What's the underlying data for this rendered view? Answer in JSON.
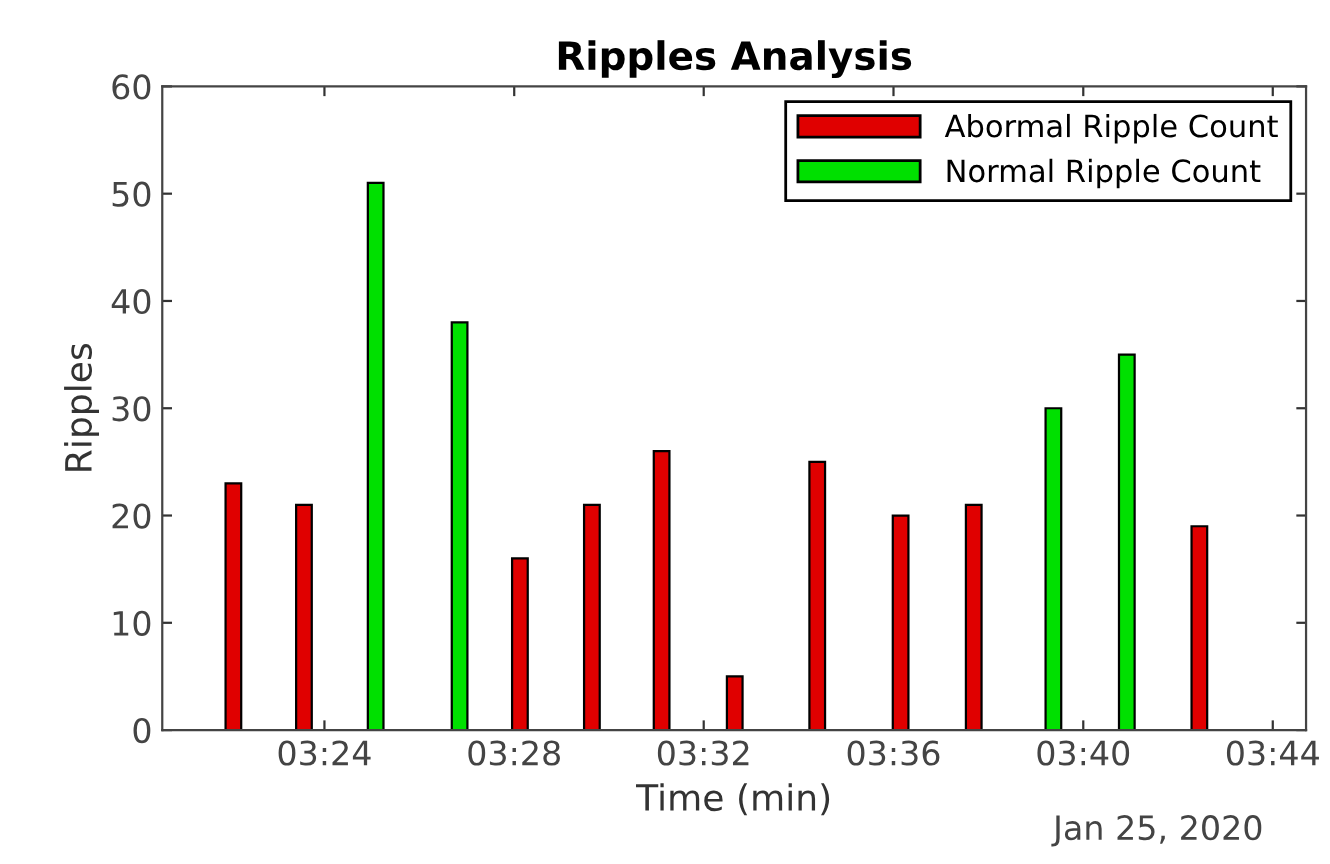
{
  "chart_data": {
    "type": "bar",
    "title": "Ripples Analysis",
    "xlabel": "Time (min)",
    "ylabel": "Ripples",
    "series": [
      {
        "name": "Abormal Ripple Count",
        "color": "#e00000",
        "x": [
          3.368,
          3.3928,
          3.4687,
          3.494,
          3.5185,
          3.5442,
          3.5732,
          3.6025,
          3.6282,
          3.7075
        ],
        "values": [
          23,
          21,
          16,
          21,
          26,
          5,
          25,
          20,
          21,
          19
        ]
      },
      {
        "name": "Normal Ripple Count",
        "color": "#00e000",
        "x": [
          3.418,
          3.4475,
          3.6562,
          3.682
        ],
        "values": [
          51,
          38,
          30,
          35
        ]
      }
    ],
    "xlim": [
      3.343,
      3.745
    ],
    "xticks": [
      {
        "value": 3.4,
        "label": "03:24"
      },
      {
        "value": 3.4667,
        "label": "03:28"
      },
      {
        "value": 3.5333,
        "label": "03:32"
      },
      {
        "value": 3.6,
        "label": "03:36"
      },
      {
        "value": 3.6667,
        "label": "03:40"
      },
      {
        "value": 3.7333,
        "label": "03:44"
      }
    ],
    "ylim": [
      0,
      60
    ],
    "yticks": [
      0,
      10,
      20,
      30,
      40,
      50,
      60
    ],
    "annotations": [
      "Jan 25, 2020"
    ],
    "grid": false,
    "legend": "top right"
  }
}
